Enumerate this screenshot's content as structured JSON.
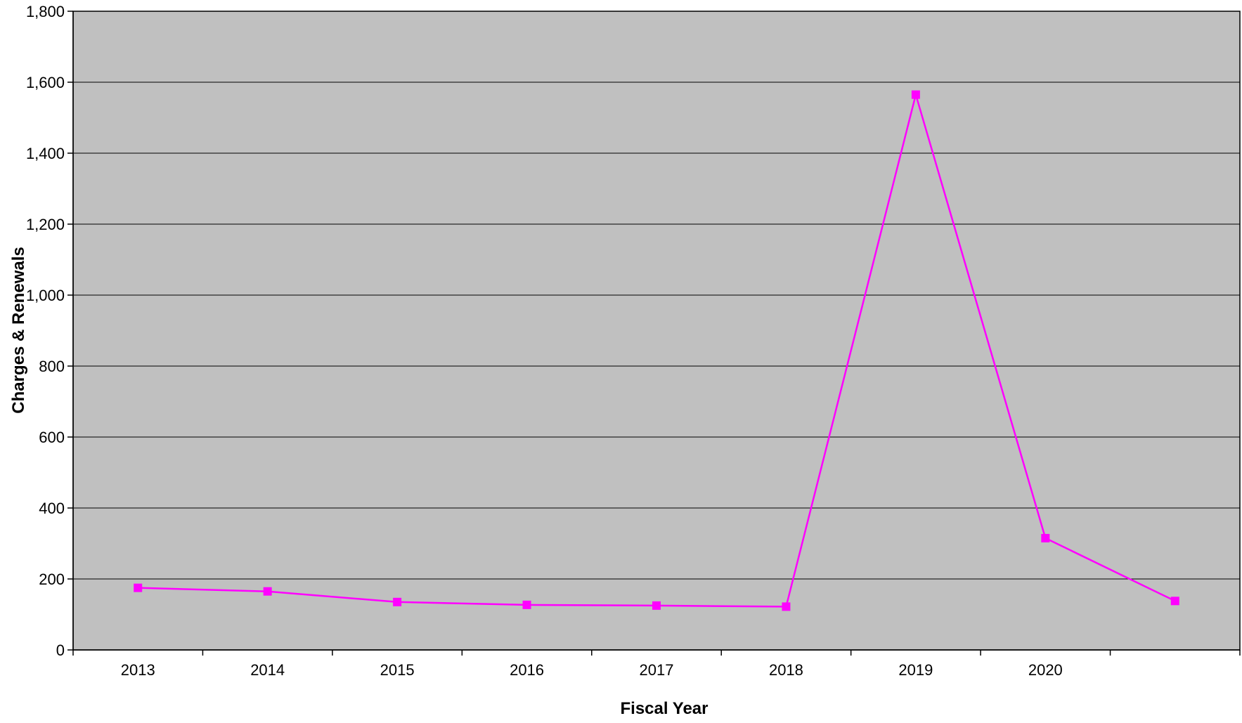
{
  "chart_data": {
    "type": "line",
    "title": "",
    "xlabel": "Fiscal Year",
    "ylabel": "Charges & Renewals",
    "categories": [
      "2013",
      "2014",
      "2015",
      "2016",
      "2017",
      "2018",
      "2019",
      "2020",
      ""
    ],
    "series": [
      {
        "values": [
          175,
          165,
          135,
          127,
          125,
          122,
          1565,
          315,
          138
        ]
      }
    ],
    "ylim": [
      0,
      1800
    ],
    "yticks": [
      0,
      200,
      400,
      600,
      800,
      1000,
      1200,
      1400,
      1600,
      1800
    ],
    "ytick_labels": [
      "0",
      "200",
      "400",
      "600",
      "800",
      "1,000",
      "1,200",
      "1,400",
      "1,600",
      "1,800"
    ],
    "grid": true,
    "colors": {
      "plot_background": "#c0c0c0",
      "series_line": "#ff00ff",
      "marker": "#ff00ff",
      "gridline": "#000000"
    }
  }
}
